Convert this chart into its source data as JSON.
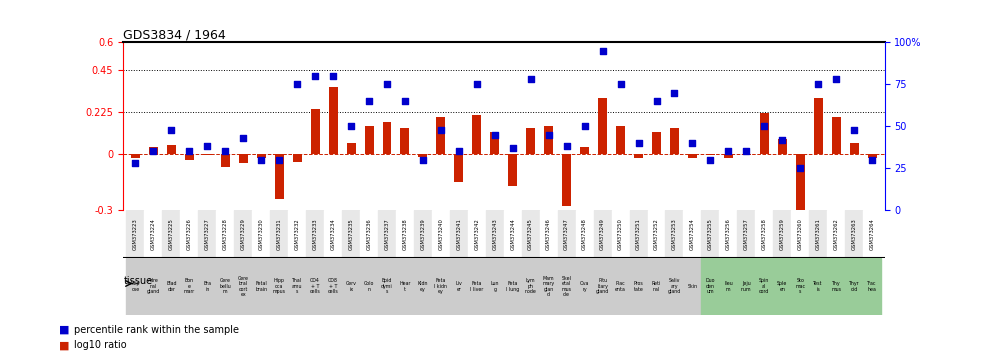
{
  "title": "GDS3834 / 1964",
  "gsm_ids": [
    "GSM373223",
    "GSM373224",
    "GSM373225",
    "GSM373226",
    "GSM373227",
    "GSM373228",
    "GSM373229",
    "GSM373230",
    "GSM373231",
    "GSM373232",
    "GSM373233",
    "GSM373234",
    "GSM373235",
    "GSM373236",
    "GSM373237",
    "GSM373238",
    "GSM373239",
    "GSM373240",
    "GSM373241",
    "GSM373242",
    "GSM373243",
    "GSM373244",
    "GSM373245",
    "GSM373246",
    "GSM373247",
    "GSM373248",
    "GSM373249",
    "GSM373250",
    "GSM373251",
    "GSM373252",
    "GSM373253",
    "GSM373254",
    "GSM373255",
    "GSM373256",
    "GSM373257",
    "GSM373258",
    "GSM373259",
    "GSM373260",
    "GSM373261",
    "GSM373262",
    "GSM373263",
    "GSM373264"
  ],
  "tissue_labels": [
    [
      "Adip",
      "ose"
    ],
    [
      "Adre",
      "nal",
      "gland"
    ],
    [
      "Blad",
      "der"
    ],
    [
      "Bon",
      "e",
      "marr"
    ],
    [
      "Bra",
      "in"
    ],
    [
      "Cere",
      "bellu",
      "m"
    ],
    [
      "Cere",
      "bral",
      "cort",
      "ex"
    ],
    [
      "Fetal",
      "brain"
    ],
    [
      "Hipp",
      "oca",
      "mpus"
    ],
    [
      "Thal",
      "amu",
      "s"
    ],
    [
      "CD4",
      "+ T",
      "cells"
    ],
    [
      "CD8",
      "+ T",
      "cells"
    ],
    [
      "Cerv",
      "ix"
    ],
    [
      "Colo",
      "n"
    ],
    [
      "Epid",
      "dymi",
      "s"
    ],
    [
      "Hear",
      "t"
    ],
    [
      "Kidn",
      "ey"
    ],
    [
      "Feta",
      "l kidn",
      "ey"
    ],
    [
      "Liv",
      "er"
    ],
    [
      "Feta",
      "l liver"
    ],
    [
      "Lun",
      "g"
    ],
    [
      "Feta",
      "l lung"
    ],
    [
      "Lym",
      "ph",
      "node"
    ],
    [
      "Mam",
      "mary",
      "glan",
      "d"
    ],
    [
      "Skel",
      "etal",
      "mus",
      "cle"
    ],
    [
      "Ova",
      "ry"
    ],
    [
      "Pitu",
      "itary",
      "gland"
    ],
    [
      "Plac",
      "enta"
    ],
    [
      "Pros",
      "tate"
    ],
    [
      "Reti",
      "nal"
    ],
    [
      "Saliv",
      "ary",
      "gland"
    ],
    [
      "Skin"
    ],
    [
      "Duo",
      "den",
      "um"
    ],
    [
      "Ileu",
      "m"
    ],
    [
      "Jeju",
      "num"
    ],
    [
      "Spin",
      "al",
      "cord"
    ],
    [
      "Sple",
      "en"
    ],
    [
      "Sto",
      "mac",
      "s"
    ],
    [
      "Test",
      "is"
    ],
    [
      "Thy",
      "mus"
    ],
    [
      "Thyr",
      "oid"
    ],
    [
      "Trac",
      "hea"
    ]
  ],
  "tissue_colors": [
    "#cccccc",
    "#cccccc",
    "#cccccc",
    "#cccccc",
    "#cccccc",
    "#cccccc",
    "#cccccc",
    "#cccccc",
    "#cccccc",
    "#cccccc",
    "#cccccc",
    "#cccccc",
    "#cccccc",
    "#cccccc",
    "#cccccc",
    "#cccccc",
    "#cccccc",
    "#cccccc",
    "#cccccc",
    "#cccccc",
    "#cccccc",
    "#cccccc",
    "#cccccc",
    "#cccccc",
    "#cccccc",
    "#cccccc",
    "#cccccc",
    "#cccccc",
    "#cccccc",
    "#cccccc",
    "#cccccc",
    "#cccccc",
    "#99cc99",
    "#99cc99",
    "#99cc99",
    "#99cc99",
    "#99cc99",
    "#99cc99",
    "#99cc99",
    "#99cc99",
    "#99cc99",
    "#99cc99"
  ],
  "log10_ratio": [
    -0.02,
    0.04,
    0.05,
    -0.03,
    -0.005,
    -0.07,
    -0.05,
    -0.02,
    -0.24,
    -0.04,
    0.24,
    0.36,
    0.06,
    0.15,
    0.17,
    0.14,
    -0.015,
    0.2,
    -0.15,
    0.21,
    0.12,
    -0.17,
    0.14,
    0.15,
    -0.28,
    0.04,
    0.3,
    0.15,
    -0.02,
    0.12,
    0.14,
    -0.02,
    -0.005,
    -0.02,
    -0.005,
    0.22,
    0.08,
    -0.3,
    0.3,
    0.2,
    0.06,
    -0.02
  ],
  "percentile": [
    28,
    35,
    48,
    35,
    38,
    35,
    43,
    30,
    30,
    75,
    80,
    80,
    50,
    65,
    75,
    65,
    30,
    48,
    35,
    75,
    45,
    37,
    78,
    45,
    38,
    50,
    95,
    75,
    40,
    65,
    70,
    40,
    30,
    35,
    35,
    50,
    42,
    25,
    75,
    78,
    48,
    30
  ],
  "ylim_left": [
    -0.3,
    0.6
  ],
  "ylim_right": [
    0,
    100
  ],
  "hline_values": [
    0.45,
    0.225
  ],
  "hline_pct": [
    75,
    50
  ],
  "bar_color": "#cc2200",
  "scatter_color": "#0000cc",
  "zero_line_color": "#cc2200",
  "dotted_line_color": "#000000",
  "left_yticks": [
    -0.3,
    0,
    0.225,
    0.45,
    0.6
  ],
  "right_yticks": [
    0,
    25,
    50,
    75,
    100
  ],
  "left_ytick_labels": [
    "-0.3",
    "0",
    "0.225",
    "0.45",
    "0.6"
  ],
  "right_ytick_labels": [
    "0",
    "25",
    "50",
    "75",
    "100%"
  ]
}
